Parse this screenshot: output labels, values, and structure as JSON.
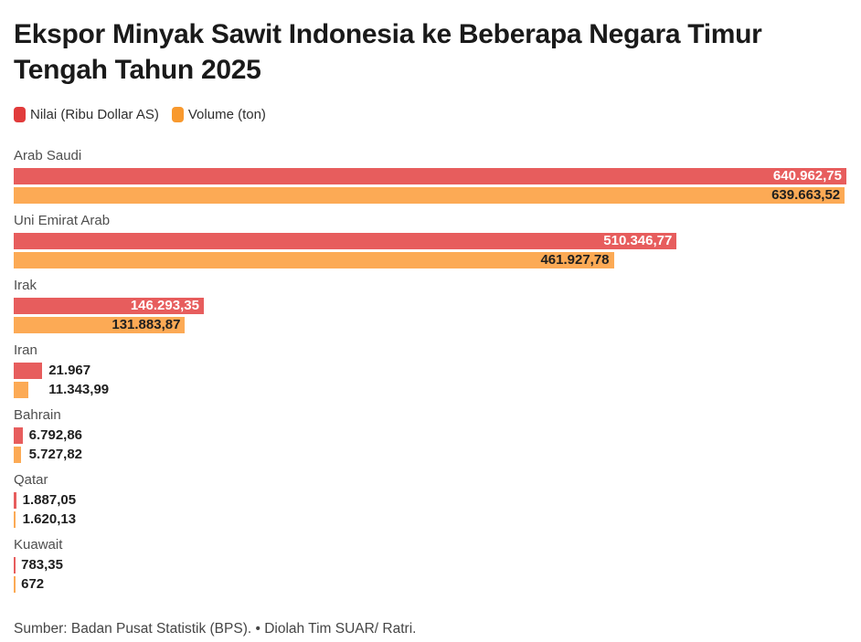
{
  "chart_data": {
    "type": "bar",
    "orientation": "horizontal",
    "title": "Ekspor Minyak Sawit Indonesia ke Beberapa Negara Timur Tengah Tahun 2025",
    "source": "Sumber: Badan Pusat Statistik (BPS). • Diolah Tim SUAR/ Ratri.",
    "categories": [
      "Arab Saudi",
      "Uni Emirat Arab",
      "Irak",
      "Iran",
      "Bahrain",
      "Qatar",
      "Kuawait"
    ],
    "xmax": 640962.75,
    "grid": false,
    "legend_position": "top-left",
    "series": [
      {
        "name": "Nilai (Ribu Dollar AS)",
        "color": "#e75d5d",
        "legend_color": "#e13b3b",
        "inside_label_color": "#ffffff",
        "values": [
          640962.75,
          510346.77,
          146293.35,
          21967,
          6792.86,
          1887.05,
          783.35
        ],
        "labels": [
          "640.962,75",
          "510.346,77",
          "146.293,35",
          "21.967",
          "6.792,86",
          "1.887,05",
          "783,35"
        ]
      },
      {
        "name": "Volume (ton)",
        "color": "#fcaa55",
        "legend_color": "#f8992e",
        "inside_label_color": "#1f1f1f",
        "values": [
          639663.52,
          461927.78,
          131883.87,
          11343.99,
          5727.82,
          1620.13,
          672
        ],
        "labels": [
          "639.663,52",
          "461.927,78",
          "131.883,87",
          "11.343,99",
          "5.727,82",
          "1.620,13",
          "672"
        ]
      }
    ]
  }
}
